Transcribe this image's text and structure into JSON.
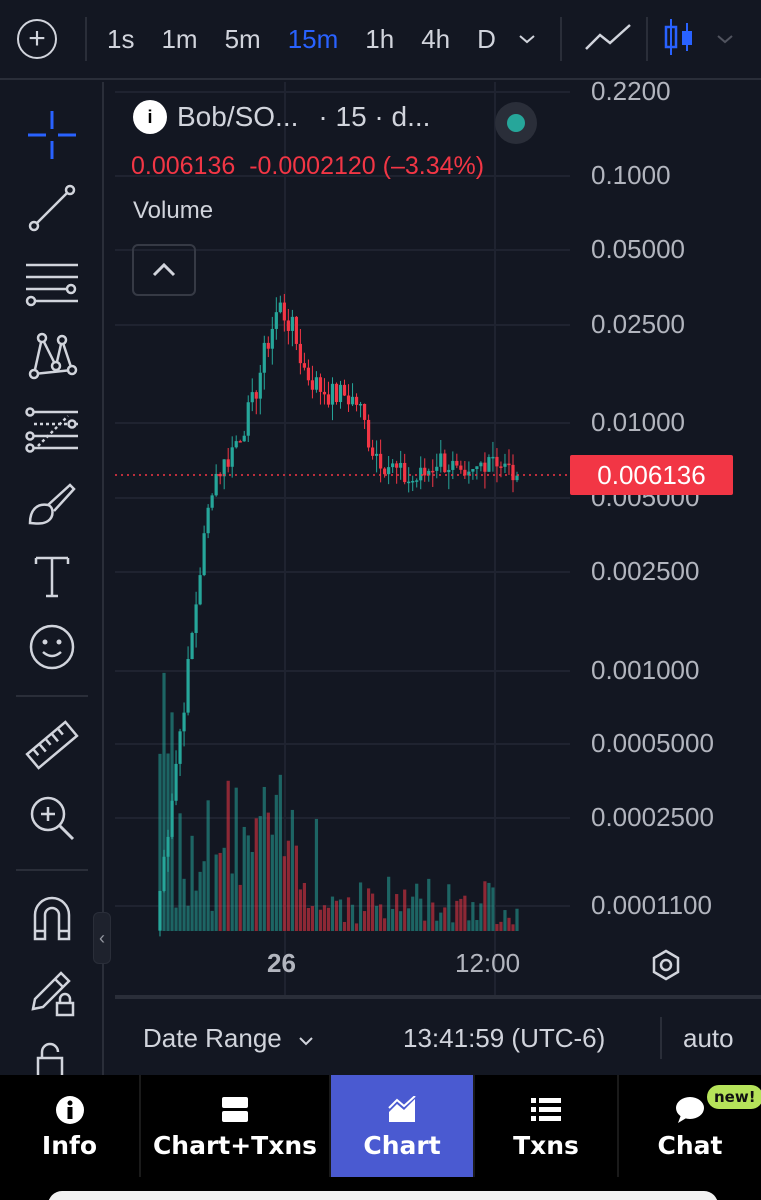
{
  "toolbar": {
    "add_icon": "plus-circle-icon",
    "timeframes": [
      "1s",
      "1m",
      "5m",
      "15m",
      "1h",
      "4h",
      "D"
    ],
    "active_timeframe": "15m",
    "active_color": "#2962ff",
    "chart_style_icons": [
      "line-chart-icon",
      "candlestick-icon"
    ]
  },
  "drawing_tools": [
    "crosshair-icon",
    "trend-line-icon",
    "horizontal-lines-icon",
    "pattern-icon",
    "fib-levels-icon",
    "brush-icon",
    "text-icon",
    "emoji-icon",
    "ruler-icon",
    "zoom-in-icon",
    "magnet-icon",
    "lock-drawing-icon",
    "unlock-icon"
  ],
  "legend": {
    "symbol": "Bob/SO...",
    "interval": "· 15 · d...",
    "last": "0.006136",
    "change": "-0.0002120",
    "change_pct": "(–3.34%)",
    "volume_label": "Volume",
    "down_color": "#f23645",
    "up_color": "#26a69a"
  },
  "last_price_tag": "0.006136",
  "status": {
    "date_range": "Date Range",
    "clock": "13:41:59 (UTC-6)",
    "scale": "auto"
  },
  "nav": {
    "items": [
      {
        "label": "Info",
        "icon": "info-icon"
      },
      {
        "label": "Chart+Txns",
        "icon": "split-view-icon"
      },
      {
        "label": "Chart",
        "icon": "chart-icon"
      },
      {
        "label": "Txns",
        "icon": "list-icon"
      },
      {
        "label": "Chat",
        "icon": "chat-bubble-icon"
      }
    ],
    "active": "Chart",
    "badge": "new!",
    "active_color": "#4a5ad1"
  },
  "chart_data": {
    "type": "candlestick",
    "yscale": "log",
    "ylim": [
      0.0001,
      0.23
    ],
    "y_ticks": [
      "0.2200",
      "0.1000",
      "0.05000",
      "0.02500",
      "0.01000",
      "0.005000",
      "0.002500",
      "0.001000",
      "0.0005000",
      "0.0002500",
      "0.0001100"
    ],
    "x_ticks": [
      "26",
      "12:00"
    ],
    "last_price": 0.006136,
    "grid": true,
    "close_series_approx": [
      0.00013,
      0.00035,
      0.0009,
      0.0025,
      0.006,
      0.007,
      0.009,
      0.012,
      0.02,
      0.03,
      0.024,
      0.016,
      0.014,
      0.013,
      0.013,
      0.012,
      0.008,
      0.007,
      0.0063,
      0.0058,
      0.0062,
      0.0072,
      0.0068,
      0.0055,
      0.0065,
      0.0078,
      0.0066,
      0.0061
    ]
  }
}
